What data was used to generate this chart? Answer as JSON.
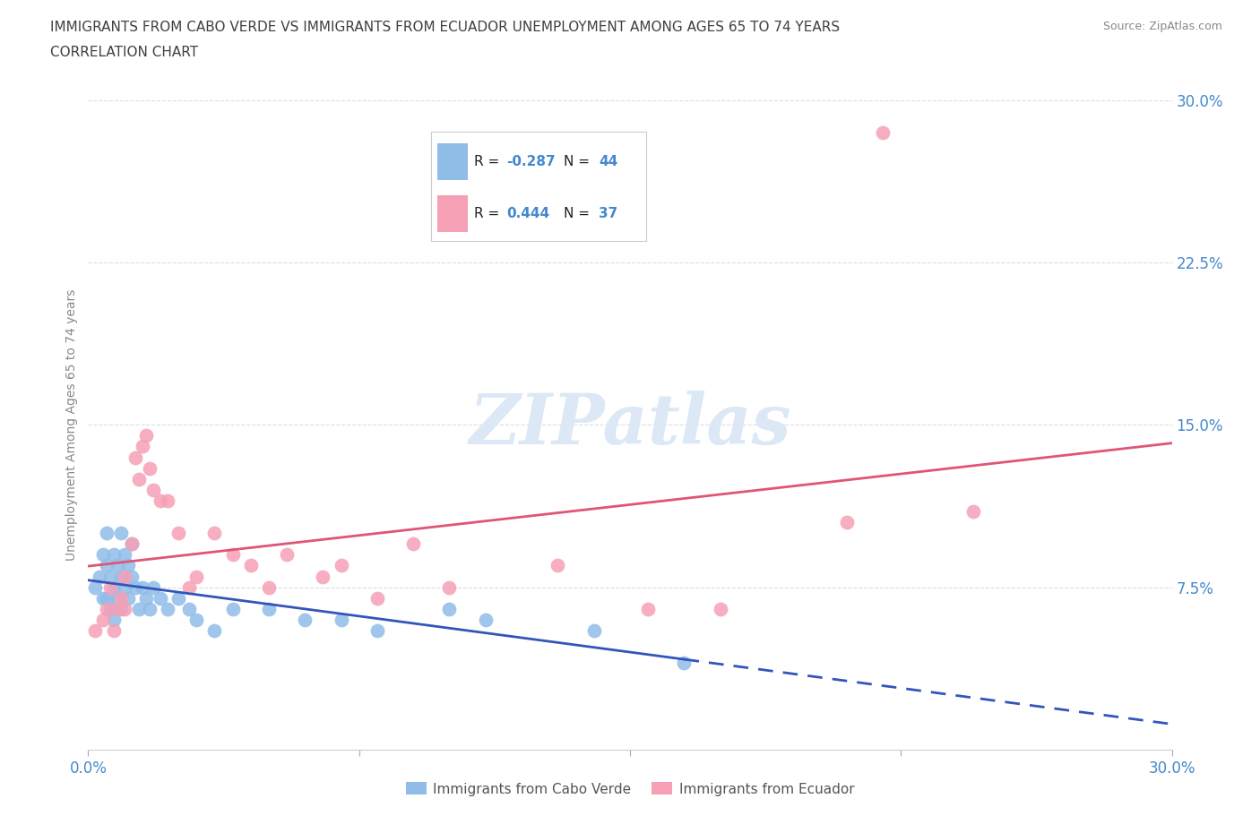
{
  "title_line1": "IMMIGRANTS FROM CABO VERDE VS IMMIGRANTS FROM ECUADOR UNEMPLOYMENT AMONG AGES 65 TO 74 YEARS",
  "title_line2": "CORRELATION CHART",
  "source": "Source: ZipAtlas.com",
  "ylabel": "Unemployment Among Ages 65 to 74 years",
  "xlim": [
    0.0,
    0.3
  ],
  "ylim": [
    0.0,
    0.3
  ],
  "xticks": [
    0.0,
    0.075,
    0.15,
    0.225,
    0.3
  ],
  "yticks": [
    0.075,
    0.15,
    0.225,
    0.3
  ],
  "xticklabels_map": {
    "0.0": "0.0%",
    "0.075": "",
    "0.15": "",
    "0.225": "",
    "0.30": "30.0%"
  },
  "yticklabels_map": {
    "0.075": "7.5%",
    "0.15": "15.0%",
    "0.225": "22.5%",
    "0.30": "30.0%"
  },
  "cabo_verde_color": "#90bce8",
  "ecuador_color": "#f5a0b5",
  "cabo_verde_trend_color": "#3355bb",
  "ecuador_trend_color": "#e05575",
  "cabo_verde_R": -0.287,
  "cabo_verde_N": 44,
  "ecuador_R": 0.444,
  "ecuador_N": 37,
  "cabo_verde_scatter": [
    [
      0.002,
      0.075
    ],
    [
      0.003,
      0.08
    ],
    [
      0.004,
      0.09
    ],
    [
      0.004,
      0.07
    ],
    [
      0.005,
      0.1
    ],
    [
      0.005,
      0.085
    ],
    [
      0.005,
      0.07
    ],
    [
      0.006,
      0.08
    ],
    [
      0.006,
      0.065
    ],
    [
      0.007,
      0.09
    ],
    [
      0.007,
      0.075
    ],
    [
      0.007,
      0.06
    ],
    [
      0.008,
      0.085
    ],
    [
      0.008,
      0.07
    ],
    [
      0.009,
      0.1
    ],
    [
      0.009,
      0.08
    ],
    [
      0.009,
      0.065
    ],
    [
      0.01,
      0.09
    ],
    [
      0.01,
      0.075
    ],
    [
      0.011,
      0.085
    ],
    [
      0.011,
      0.07
    ],
    [
      0.012,
      0.095
    ],
    [
      0.012,
      0.08
    ],
    [
      0.013,
      0.075
    ],
    [
      0.014,
      0.065
    ],
    [
      0.015,
      0.075
    ],
    [
      0.016,
      0.07
    ],
    [
      0.017,
      0.065
    ],
    [
      0.018,
      0.075
    ],
    [
      0.02,
      0.07
    ],
    [
      0.022,
      0.065
    ],
    [
      0.025,
      0.07
    ],
    [
      0.028,
      0.065
    ],
    [
      0.03,
      0.06
    ],
    [
      0.035,
      0.055
    ],
    [
      0.04,
      0.065
    ],
    [
      0.05,
      0.065
    ],
    [
      0.06,
      0.06
    ],
    [
      0.07,
      0.06
    ],
    [
      0.08,
      0.055
    ],
    [
      0.1,
      0.065
    ],
    [
      0.11,
      0.06
    ],
    [
      0.14,
      0.055
    ],
    [
      0.165,
      0.04
    ]
  ],
  "ecuador_scatter": [
    [
      0.002,
      0.055
    ],
    [
      0.004,
      0.06
    ],
    [
      0.005,
      0.065
    ],
    [
      0.006,
      0.075
    ],
    [
      0.007,
      0.055
    ],
    [
      0.008,
      0.065
    ],
    [
      0.009,
      0.07
    ],
    [
      0.01,
      0.08
    ],
    [
      0.01,
      0.065
    ],
    [
      0.012,
      0.095
    ],
    [
      0.013,
      0.135
    ],
    [
      0.014,
      0.125
    ],
    [
      0.015,
      0.14
    ],
    [
      0.016,
      0.145
    ],
    [
      0.017,
      0.13
    ],
    [
      0.018,
      0.12
    ],
    [
      0.02,
      0.115
    ],
    [
      0.022,
      0.115
    ],
    [
      0.025,
      0.1
    ],
    [
      0.028,
      0.075
    ],
    [
      0.03,
      0.08
    ],
    [
      0.035,
      0.1
    ],
    [
      0.04,
      0.09
    ],
    [
      0.045,
      0.085
    ],
    [
      0.05,
      0.075
    ],
    [
      0.055,
      0.09
    ],
    [
      0.065,
      0.08
    ],
    [
      0.07,
      0.085
    ],
    [
      0.08,
      0.07
    ],
    [
      0.09,
      0.095
    ],
    [
      0.1,
      0.075
    ],
    [
      0.13,
      0.085
    ],
    [
      0.155,
      0.065
    ],
    [
      0.175,
      0.065
    ],
    [
      0.21,
      0.105
    ],
    [
      0.22,
      0.285
    ],
    [
      0.245,
      0.11
    ]
  ],
  "watermark_text": "ZIPatlas",
  "watermark_color": "#dce8f5",
  "background_color": "#ffffff",
  "grid_color": "#dddddd",
  "title_color": "#404040",
  "tick_color": "#4488cc",
  "legend_text_color": "#222222",
  "legend_value_color": "#4488cc",
  "bottom_legend_color": "#555555"
}
